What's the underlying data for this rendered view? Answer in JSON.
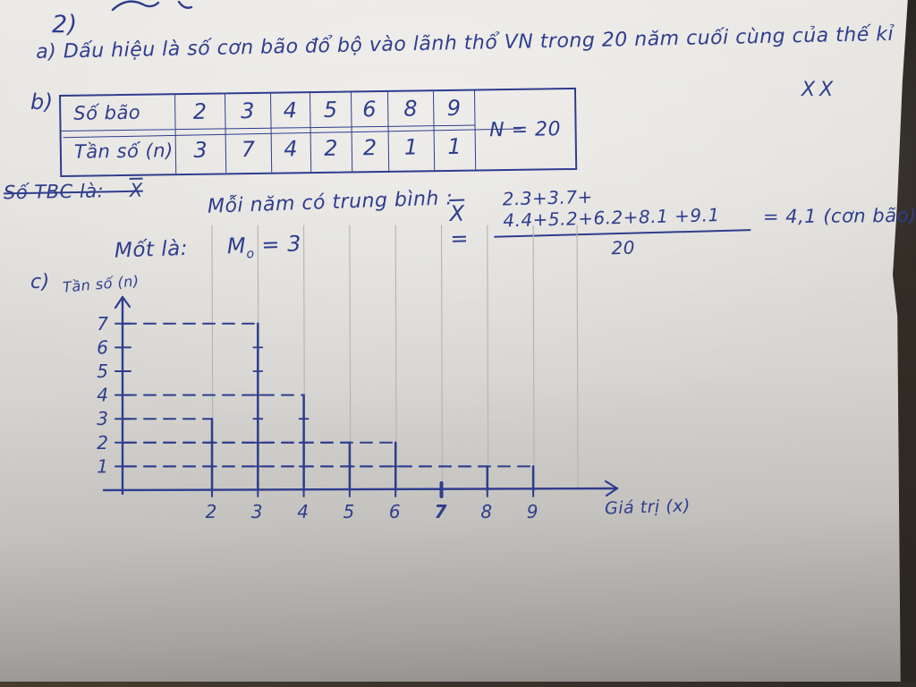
{
  "page": {
    "problem_number": "2)",
    "line_a": "a) Dấu hiệu là số cơn bão đổ bộ vào lãnh thổ VN trong 20 năm cuối cùng của thế kỉ",
    "century_mark": "XX",
    "part_b_label": "b)",
    "part_c_label": "c)"
  },
  "table": {
    "row1_label": "Số bão",
    "row2_label": "Tần số (n)",
    "values": [
      "2",
      "3",
      "4",
      "5",
      "6",
      "8",
      "9"
    ],
    "frequencies": [
      "3",
      "7",
      "4",
      "2",
      "2",
      "1",
      "1"
    ],
    "total": "N = 20"
  },
  "mean": {
    "struck_text": "Số TBC là:    ",
    "struck_symbol": "X",
    "intro": "Mỗi năm có trung bình :",
    "lhs_symbol": "X",
    "equals": "=",
    "numerator": "2.3+3.7+ 4.4+5.2+6.2+8.1 +9.1",
    "denominator": "20",
    "result": "= 4,1 (cơn bão)"
  },
  "mode": {
    "label": "Mốt là:",
    "symbol": "M",
    "subscript": "o",
    "value": "= 3"
  },
  "chart": {
    "ylabel": "Tần số (n)",
    "xlabel": "Giá trị (x)"
  },
  "chart_data": {
    "type": "bar",
    "style": "hand-drawn vertical segment (frequency) chart with dashed horizontal guides from y-axis to each segment top",
    "categories": [
      2,
      3,
      4,
      5,
      6,
      8,
      9
    ],
    "values": [
      3,
      7,
      4,
      2,
      2,
      1,
      1
    ],
    "x_ticks": [
      2,
      3,
      4,
      5,
      6,
      7,
      8,
      9
    ],
    "y_ticks": [
      1,
      2,
      3,
      4,
      5,
      6,
      7
    ],
    "emphasized_x_tick": 7,
    "xlabel": "Giá trị (x)",
    "ylabel": "Tần số (n)",
    "xlim": [
      1,
      10
    ],
    "ylim": [
      0,
      7.5
    ],
    "grid": false,
    "legend": null,
    "title": "",
    "N": 20
  }
}
